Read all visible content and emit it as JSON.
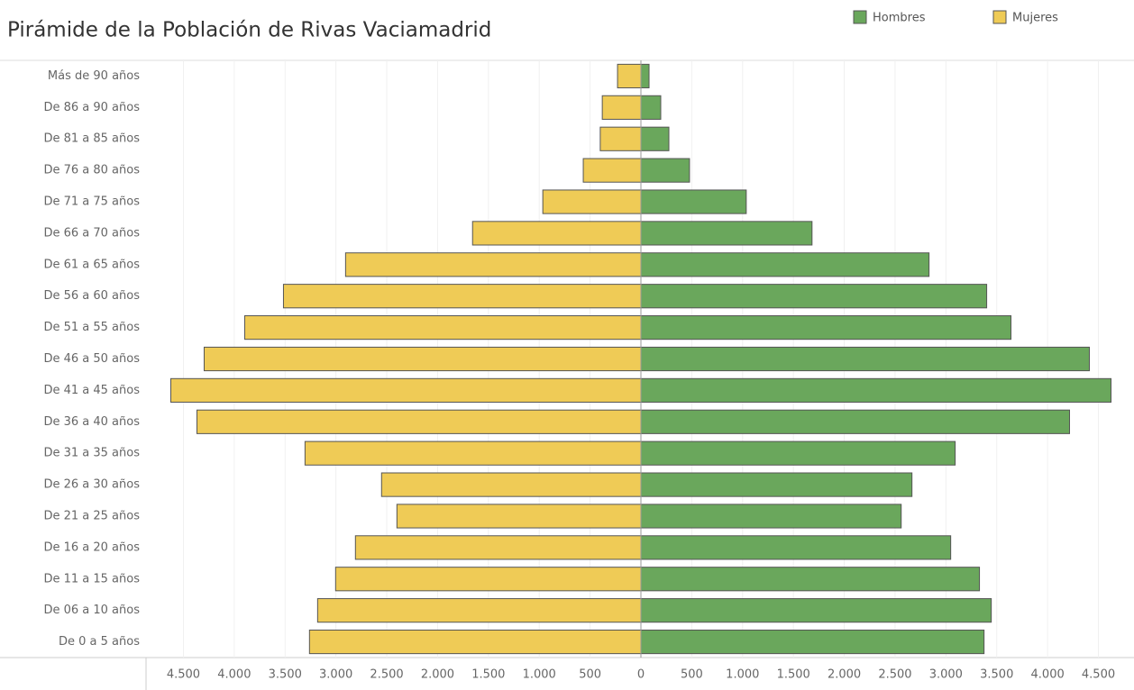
{
  "chart_data": {
    "type": "pyramid",
    "title": "Pirámide de la Población de Rivas Vaciamadrid",
    "categories": [
      "Más de 90 años",
      "De 86 a 90 años",
      "De 81 a 85 años",
      "De 76 a 80 años",
      "De 71 a 75 años",
      "De 66 a 70 años",
      "De 61 a 65 años",
      "De 56 a 60 años",
      "De 51 a 55 años",
      "De 46 a 50 años",
      "De 41 a 45 años",
      "De 36 a 40 años",
      "De 31 a 35 años",
      "De 26 a 30 años",
      "De 21 a 25 años",
      "De 16 a 20 años",
      "De 11 a 15 años",
      "De 06 a 10 años",
      "De 0 a 5 años"
    ],
    "series": [
      {
        "name": "Hombres",
        "color": "#6aa75c",
        "side": "right",
        "values": [
          80,
          195,
          275,
          478,
          1036,
          1683,
          2834,
          3401,
          3640,
          4411,
          4624,
          4216,
          3091,
          2666,
          2560,
          3047,
          3330,
          3446,
          3375
        ]
      },
      {
        "name": "Mujeres",
        "color": "#efcb56",
        "side": "left",
        "values": [
          230,
          380,
          400,
          567,
          965,
          1656,
          2905,
          3516,
          3897,
          4296,
          4624,
          4367,
          3304,
          2551,
          2400,
          2808,
          3003,
          3180,
          3260
        ]
      }
    ],
    "xlim": [
      0,
      4850
    ],
    "xticks": [
      0,
      500,
      {
        "value": 1000,
        "label": "1.000"
      },
      {
        "value": 1500,
        "label": "1.500"
      },
      {
        "value": 2000,
        "label": "2.000"
      },
      {
        "value": 2500,
        "label": "2.500"
      },
      {
        "value": 3000,
        "label": "3.000"
      },
      {
        "value": 3500,
        "label": "3.500"
      },
      {
        "value": 4000,
        "label": "4.000"
      },
      {
        "value": 4500,
        "label": "4.500"
      }
    ],
    "grid": true
  }
}
